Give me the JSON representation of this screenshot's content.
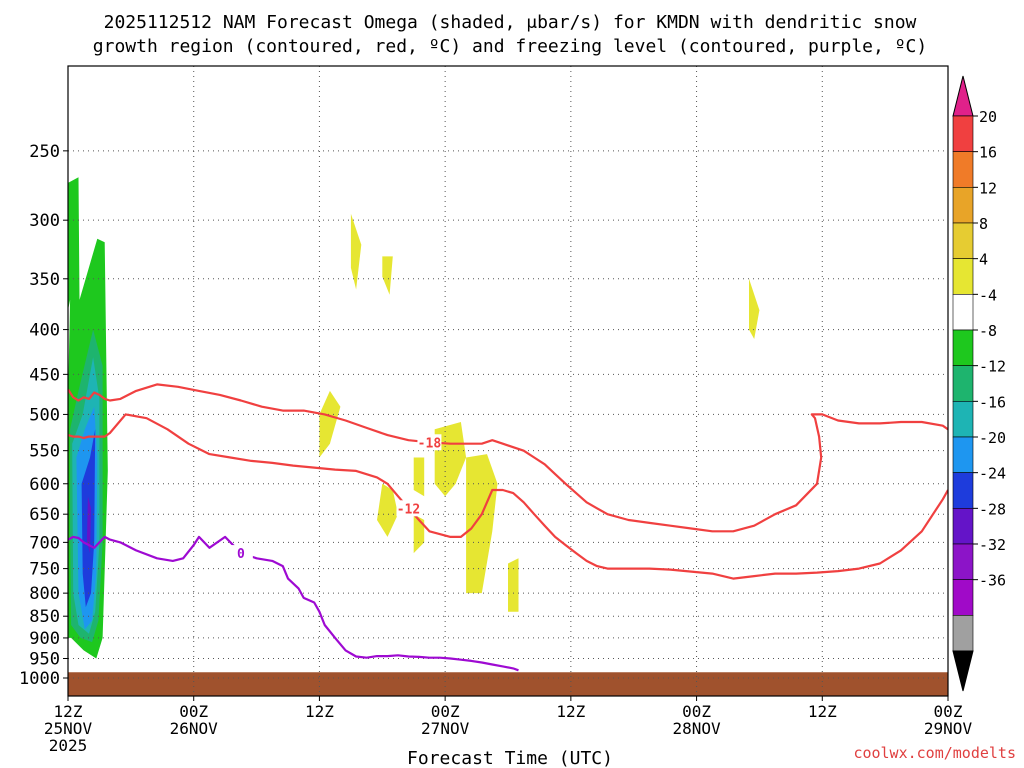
{
  "chart_data": {
    "type": "time-height cross section",
    "title_line1": "2025112512 NAM Forecast Omega (shaded, μbar/s) for KMDN with dendritic snow",
    "title_line2": "growth region (contoured, red, ºC) and freezing level (contoured, purple, ºC)",
    "xlabel": "Forecast Time (UTC)",
    "ylabel": "",
    "credit": "coolwx.com/modelts",
    "y_axis": {
      "scale": "log-pressure",
      "range_hPa": [
        1000,
        200
      ],
      "ticks": [
        250,
        300,
        350,
        400,
        450,
        500,
        550,
        600,
        650,
        700,
        750,
        800,
        850,
        900,
        950,
        1000
      ]
    },
    "x_axis": {
      "range_hours": [
        0,
        84
      ],
      "ticks": [
        {
          "h": 0,
          "label1": "12Z",
          "label2": "25NOV",
          "label3": "2025"
        },
        {
          "h": 12,
          "label1": "00Z",
          "label2": "26NOV"
        },
        {
          "h": 24,
          "label1": "12Z",
          "label2": ""
        },
        {
          "h": 36,
          "label1": "00Z",
          "label2": "27NOV"
        },
        {
          "h": 48,
          "label1": "12Z",
          "label2": ""
        },
        {
          "h": 60,
          "label1": "00Z",
          "label2": "28NOV"
        },
        {
          "h": 72,
          "label1": "12Z",
          "label2": ""
        },
        {
          "h": 84,
          "label1": "00Z",
          "label2": "29NOV"
        }
      ]
    },
    "grid": "dotted",
    "colorbar": {
      "position": "right",
      "labels": [
        "20",
        "16",
        "12",
        "8",
        "4",
        "-4",
        "-8",
        "-12",
        "-16",
        "-20",
        "-24",
        "-28",
        "-32",
        "-36"
      ],
      "colors": [
        "#e0218a",
        "#f04040",
        "#f07b28",
        "#e8a428",
        "#e6cc32",
        "#e6e632",
        "#ffffff",
        "#1ec81e",
        "#1eb46e",
        "#1eb4b4",
        "#1e96f0",
        "#1e3cdc",
        "#6414c8",
        "#8c14c8",
        "#a00ac8",
        "#a0a0a0",
        "#000000"
      ]
    },
    "omega_shading": [
      {
        "color": "#1ec81e",
        "polygon_h_hPa": [
          [
            0,
            272
          ],
          [
            1,
            268
          ],
          [
            1.1,
            370
          ],
          [
            2.8,
            315
          ],
          [
            3.5,
            318
          ],
          [
            3.8,
            580
          ],
          [
            3.3,
            900
          ],
          [
            2.7,
            950
          ],
          [
            1.5,
            930
          ],
          [
            0.3,
            900
          ],
          [
            0,
            900
          ],
          [
            0,
            480
          ],
          [
            0.2,
            370
          ],
          [
            0,
            380
          ]
        ]
      },
      {
        "color": "#1eb46e",
        "polygon_h_hPa": [
          [
            0.2,
            520
          ],
          [
            1.0,
            470
          ],
          [
            2.4,
            400
          ],
          [
            3.3,
            440
          ],
          [
            3.3,
            700
          ],
          [
            2.9,
            860
          ],
          [
            2.3,
            910
          ],
          [
            1.2,
            900
          ],
          [
            0.3,
            870
          ],
          [
            0.2,
            680
          ]
        ]
      },
      {
        "color": "#1eb4b4",
        "polygon_h_hPa": [
          [
            0.4,
            540
          ],
          [
            1.4,
            500
          ],
          [
            2.4,
            430
          ],
          [
            3.0,
            480
          ],
          [
            3.0,
            700
          ],
          [
            2.6,
            840
          ],
          [
            2.0,
            890
          ],
          [
            1.0,
            870
          ],
          [
            0.5,
            800
          ]
        ]
      },
      {
        "color": "#1e96f0",
        "polygon_h_hPa": [
          [
            0.8,
            560
          ],
          [
            1.6,
            520
          ],
          [
            2.5,
            490
          ],
          [
            2.8,
            560
          ],
          [
            2.7,
            760
          ],
          [
            2.3,
            860
          ],
          [
            1.6,
            880
          ],
          [
            1.0,
            800
          ]
        ]
      },
      {
        "color": "#1e3cdc",
        "polygon_h_hPa": [
          [
            1.3,
            600
          ],
          [
            2.1,
            560
          ],
          [
            2.6,
            520
          ],
          [
            2.5,
            700
          ],
          [
            2.2,
            800
          ],
          [
            1.7,
            830
          ],
          [
            1.4,
            760
          ]
        ]
      },
      {
        "color": "#6414c8",
        "polygon_h_hPa": [
          [
            1.9,
            620
          ],
          [
            2.2,
            640
          ],
          [
            2.1,
            720
          ],
          [
            1.8,
            700
          ]
        ]
      },
      {
        "color": "#e6e632",
        "polygon_h_hPa": [
          [
            27,
            295
          ],
          [
            28,
            320
          ],
          [
            27.5,
            360
          ],
          [
            27,
            340
          ]
        ]
      },
      {
        "color": "#e6e632",
        "polygon_h_hPa": [
          [
            30,
            330
          ],
          [
            31,
            330
          ],
          [
            30.7,
            365
          ],
          [
            30,
            348
          ]
        ]
      },
      {
        "color": "#e6e632",
        "polygon_h_hPa": [
          [
            24,
            500
          ],
          [
            25,
            470
          ],
          [
            26,
            490
          ],
          [
            25,
            540
          ],
          [
            24,
            560
          ]
        ]
      },
      {
        "color": "#e6e632",
        "polygon_h_hPa": [
          [
            30,
            600
          ],
          [
            31,
            610
          ],
          [
            31.5,
            650
          ],
          [
            30.5,
            690
          ],
          [
            29.5,
            660
          ]
        ]
      },
      {
        "color": "#e6e632",
        "polygon_h_hPa": [
          [
            33,
            650
          ],
          [
            34,
            660
          ],
          [
            34,
            700
          ],
          [
            33,
            720
          ]
        ]
      },
      {
        "color": "#e6e632",
        "polygon_h_hPa": [
          [
            33,
            560
          ],
          [
            34,
            560
          ],
          [
            34,
            620
          ],
          [
            33,
            610
          ]
        ]
      },
      {
        "color": "#e6e632",
        "polygon_h_hPa": [
          [
            35,
            520
          ],
          [
            37.5,
            510
          ],
          [
            38,
            560
          ],
          [
            37,
            600
          ],
          [
            36,
            620
          ],
          [
            35,
            600
          ]
        ]
      },
      {
        "color": "#e6e632",
        "polygon_h_hPa": [
          [
            38,
            560
          ],
          [
            40,
            555
          ],
          [
            41,
            600
          ],
          [
            40.5,
            680
          ],
          [
            39.5,
            800
          ],
          [
            38,
            800
          ]
        ]
      },
      {
        "color": "#e6e632",
        "polygon_h_hPa": [
          [
            42,
            740
          ],
          [
            43,
            730
          ],
          [
            43,
            840
          ],
          [
            42,
            840
          ]
        ]
      },
      {
        "color": "#e6e632",
        "polygon_h_hPa": [
          [
            65,
            350
          ],
          [
            66,
            380
          ],
          [
            65.5,
            410
          ],
          [
            65,
            400
          ]
        ]
      }
    ],
    "contours": [
      {
        "label": "-12",
        "color": "#f04040",
        "x_h": [
          0,
          0.5,
          1.0,
          1.5,
          2.0,
          2.5,
          3.0,
          3.5,
          4.0,
          5.5,
          7.5,
          9.5,
          11.5,
          13.5,
          15.5,
          17.5,
          19.5,
          21.5,
          23.5,
          25.5,
          27.5,
          29.5,
          30.5,
          31.5,
          32.5,
          33.5,
          34.5,
          36.5,
          37.5,
          38.5,
          39.5,
          40.5,
          41.5,
          42.5,
          43.5,
          44.5,
          45.5,
          46.5,
          47.5,
          48.5,
          49.5,
          50.5,
          51.5,
          53.5,
          55.5,
          57.5,
          59.5,
          61.5,
          63.5,
          65.5,
          67.5,
          69.5,
          71.5,
          73.5,
          75.5,
          77.5,
          79.5,
          81.5,
          83.5,
          84
        ],
        "y_hPa": [
          528,
          530,
          530,
          532,
          530,
          530,
          530,
          530,
          525,
          500,
          505,
          520,
          540,
          555,
          560,
          565,
          568,
          572,
          575,
          578,
          580,
          590,
          600,
          620,
          640,
          660,
          680,
          690,
          690,
          675,
          650,
          610,
          610,
          615,
          630,
          650,
          670,
          690,
          705,
          720,
          735,
          745,
          750,
          750,
          750,
          752,
          756,
          760,
          770,
          765,
          760,
          760,
          758,
          755,
          750,
          740,
          715,
          680,
          625,
          610
        ]
      },
      {
        "label": "-18",
        "color": "#f04040",
        "x_h": [
          0,
          0.5,
          1.0,
          1.5,
          2.0,
          2.5,
          3.0,
          3.5,
          4.0,
          5.0,
          6.5,
          8.5,
          10.5,
          12.5,
          14.5,
          16.5,
          18.5,
          20.5,
          22.5,
          24.5,
          26.5,
          28.5,
          30.5,
          32.5,
          34.5,
          36.5,
          38.5,
          39.5,
          40.5,
          41.5,
          42.5,
          43.5,
          44.5,
          45.5,
          46.5,
          47.5,
          48.5,
          49.5,
          50.5,
          51.5,
          53.5,
          55.5,
          57.5,
          59.5,
          61.5,
          63.5,
          65.5,
          67.5,
          69.5,
          71.5,
          71.9,
          71.7,
          71.3,
          71.0,
          72.0,
          73.5,
          75.5,
          77.5,
          79.5,
          81.5,
          83.5,
          84
        ],
        "y_hPa": [
          468,
          478,
          482,
          478,
          480,
          472,
          475,
          480,
          482,
          480,
          470,
          462,
          465,
          470,
          475,
          482,
          490,
          495,
          495,
          500,
          508,
          518,
          528,
          535,
          538,
          540,
          540,
          540,
          535,
          540,
          545,
          550,
          560,
          570,
          585,
          600,
          615,
          630,
          640,
          650,
          660,
          665,
          670,
          675,
          680,
          680,
          670,
          650,
          635,
          600,
          560,
          530,
          505,
          500,
          500,
          508,
          512,
          512,
          510,
          510,
          515,
          520
        ]
      },
      {
        "label": "0",
        "color": "#9e0ad2",
        "x_h": [
          0,
          0.5,
          1.0,
          1.5,
          2.0,
          2.5,
          3.0,
          3.5,
          4.0,
          5.0,
          6.5,
          8.5,
          10.0,
          11.0,
          12.0,
          12.5,
          13.5,
          15.0,
          16.5,
          18.0,
          19.5,
          20.5,
          21.0,
          22.0,
          22.5,
          23.5,
          24.0,
          24.5,
          25.5,
          26.5,
          27.5,
          28.5,
          29.5,
          30.5,
          31.5,
          32.5,
          33.5,
          34.5,
          35.5,
          36.5,
          37.5,
          38.5,
          39.5,
          40.5,
          41.5,
          42.5,
          43.0
        ],
        "y_hPa": [
          695,
          690,
          692,
          700,
          705,
          710,
          700,
          690,
          695,
          700,
          715,
          730,
          735,
          730,
          705,
          690,
          710,
          690,
          720,
          730,
          735,
          745,
          770,
          790,
          810,
          820,
          840,
          870,
          900,
          930,
          945,
          948,
          944,
          944,
          942,
          945,
          946,
          948,
          948,
          950,
          953,
          956,
          960,
          965,
          970,
          975,
          980
        ]
      }
    ],
    "terrain_color": "#a0522d",
    "surface_pressure_hPa": 985
  }
}
